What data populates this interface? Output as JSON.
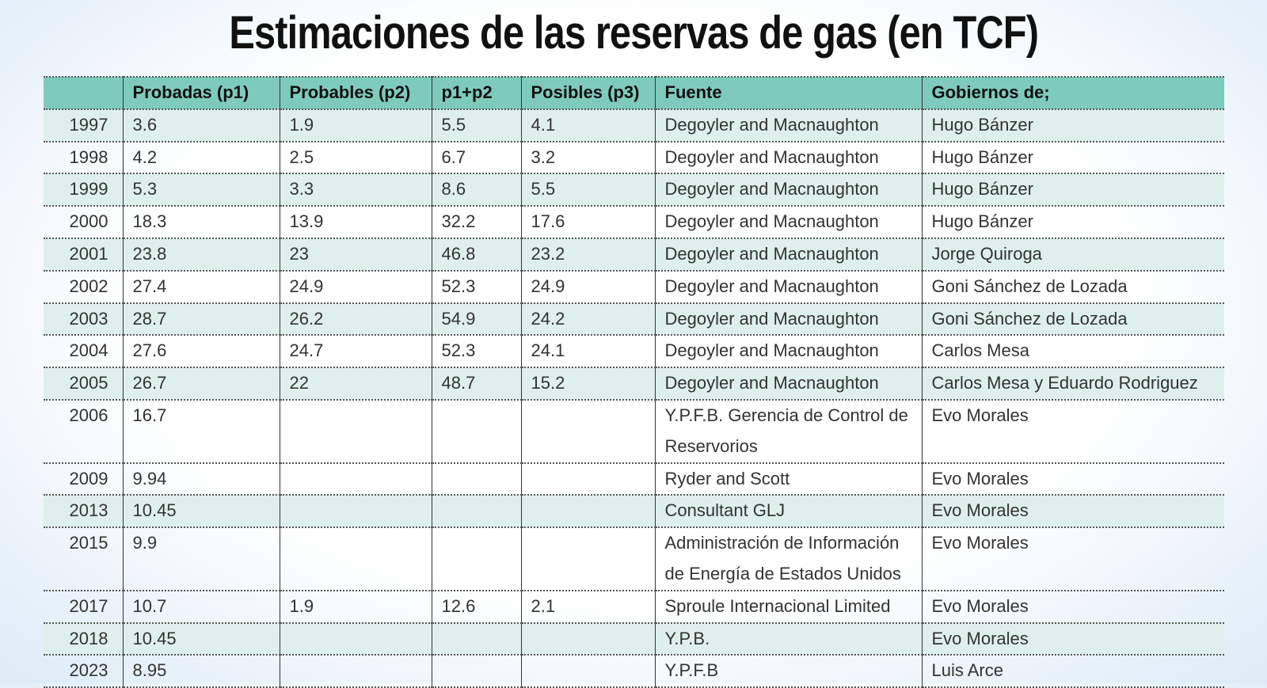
{
  "title": "Estimaciones de las reservas de gas (en TCF)",
  "table": {
    "headers": [
      "Probadas (p1)",
      "Probables (p2)",
      "p1+p2",
      "Posibles (p3)",
      "Fuente",
      "Gobiernos de;"
    ],
    "rows": [
      {
        "year": 1997,
        "p1": 3.6,
        "p2": 1.9,
        "p1p2": 5.5,
        "p3": 4.1,
        "source": "Degoyler and Macnaughton",
        "government": "Hugo Bánzer"
      },
      {
        "year": 1998,
        "p1": 4.2,
        "p2": 2.5,
        "p1p2": 6.7,
        "p3": 3.2,
        "source": "Degoyler and Macnaughton",
        "government": "Hugo Bánzer"
      },
      {
        "year": 1999,
        "p1": 5.3,
        "p2": 3.3,
        "p1p2": 8.6,
        "p3": 5.5,
        "source": "Degoyler and Macnaughton",
        "government": "Hugo Bánzer"
      },
      {
        "year": 2000,
        "p1": 18.3,
        "p2": 13.9,
        "p1p2": 32.2,
        "p3": 17.6,
        "source": "Degoyler and Macnaughton",
        "government": "Hugo Bánzer"
      },
      {
        "year": 2001,
        "p1": 23.8,
        "p2": 23,
        "p1p2": 46.8,
        "p3": 23.2,
        "source": "Degoyler and Macnaughton",
        "government": "Jorge Quiroga"
      },
      {
        "year": 2002,
        "p1": 27.4,
        "p2": 24.9,
        "p1p2": 52.3,
        "p3": 24.9,
        "source": "Degoyler and Macnaughton",
        "government": "Goni Sánchez de Lozada"
      },
      {
        "year": 2003,
        "p1": 28.7,
        "p2": 26.2,
        "p1p2": 54.9,
        "p3": 24.2,
        "source": "Degoyler and Macnaughton",
        "government": "Goni Sánchez de Lozada"
      },
      {
        "year": 2004,
        "p1": 27.6,
        "p2": 24.7,
        "p1p2": 52.3,
        "p3": 24.1,
        "source": "Degoyler and Macnaughton",
        "government": "Carlos Mesa"
      },
      {
        "year": 2005,
        "p1": 26.7,
        "p2": 22,
        "p1p2": 48.7,
        "p3": 15.2,
        "source": "Degoyler and Macnaughton",
        "government": "Carlos Mesa y Eduardo Rodriguez"
      },
      {
        "year": 2006,
        "p1": 16.7,
        "source": "Y.P.F.B. Gerencia de Control de Reservorios",
        "government": "Evo Morales"
      },
      {
        "year": 2009,
        "p1": 9.94,
        "source": "Ryder and Scott",
        "government": "Evo Morales"
      },
      {
        "year": 2013,
        "p1": 10.45,
        "source": "Consultant GLJ",
        "government": "Evo Morales"
      },
      {
        "year": 2015,
        "p1": 9.9,
        "source": "Administración de Información de Energía de Estados Unidos",
        "government": "Evo Morales"
      },
      {
        "year": 2017,
        "p1": 10.7,
        "p2": 1.9,
        "p1p2": 12.6,
        "p3": 2.1,
        "source": "Sproule Internacional Limited",
        "government": "Evo Morales"
      },
      {
        "year": 2018,
        "p1": 10.45,
        "source": "Y.P.B.",
        "government": "Evo Morales"
      },
      {
        "year": 2023,
        "p1": 8.95,
        "source": "Y.P.F.B",
        "government": "Luis Arce"
      }
    ]
  }
}
